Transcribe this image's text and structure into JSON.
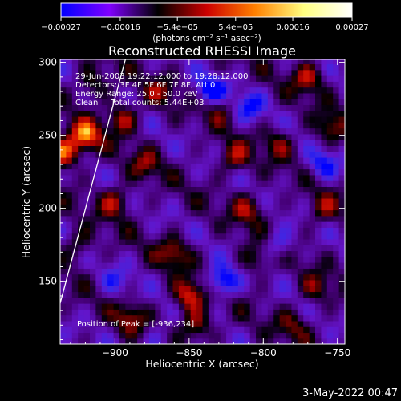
{
  "chart_data": {
    "type": "heatmap",
    "title": "Reconstructed RHESSI Image",
    "xlabel": "Heliocentric X (arcsec)",
    "ylabel": "Heliocentric Y (arcsec)",
    "xlim": [
      -937,
      -745
    ],
    "ylim": [
      107,
      302
    ],
    "x_ticks": [
      {
        "v": -900,
        "label": "−900"
      },
      {
        "v": -850,
        "label": "−850"
      },
      {
        "v": -800,
        "label": "−800"
      },
      {
        "v": -750,
        "label": "−750"
      }
    ],
    "y_ticks": [
      {
        "v": 150,
        "label": "150"
      },
      {
        "v": 200,
        "label": "200"
      },
      {
        "v": 250,
        "label": "250"
      },
      {
        "v": 300,
        "label": "300"
      }
    ],
    "colorbar": {
      "range": [
        -0.00027,
        0.00027
      ],
      "tick_values": [
        -0.00027,
        -0.00016,
        -5.4e-05,
        5.4e-05,
        0.00016,
        0.00027
      ],
      "tick_labels": [
        "−0.00027",
        "−0.00016",
        "−5.4e−05",
        "5.4e−05",
        "0.00016",
        "0.00027"
      ],
      "unit_label": "(photons cm⁻² s⁻¹ asec⁻²)",
      "colors": [
        "#0000ff",
        "#8000ff",
        "#000000",
        "#cc0000",
        "#ff8000",
        "#ffff80",
        "#ffffff"
      ]
    },
    "annotations": [
      "29-Jun-2003 19:22:12.000 to 19:28:12.000",
      "Detectors: 3F 4F 5F 6F 7F 8F, Att 0",
      "Energy Range: 25.0 - 50.0 keV",
      "Clean     Total counts: 5.44E+03"
    ],
    "peak_label": "Position of Peak = [-936,234]",
    "limb_line": [
      [
        -937,
        135
      ],
      [
        -893,
        302
      ]
    ],
    "grid_dx": 4,
    "grid_dy": 4,
    "hotspots": [
      {
        "x": -920,
        "y": 250,
        "value": 0.00026
      },
      {
        "x": -935,
        "y": 238,
        "value": 0.00027
      },
      {
        "x": -895,
        "y": 262,
        "value": 0.00018
      },
      {
        "x": -900,
        "y": 205,
        "value": 0.00017
      },
      {
        "x": -915,
        "y": 285,
        "value": 0.00014
      },
      {
        "x": -880,
        "y": 230,
        "value": 0.00012
      },
      {
        "x": -860,
        "y": 170,
        "value": 0.00016
      },
      {
        "x": -850,
        "y": 140,
        "value": 0.00022
      },
      {
        "x": -845,
        "y": 120,
        "value": 0.00018
      },
      {
        "x": -890,
        "y": 125,
        "value": 0.00014
      },
      {
        "x": -830,
        "y": 270,
        "value": 0.00012
      },
      {
        "x": -820,
        "y": 235,
        "value": 0.00016
      },
      {
        "x": -810,
        "y": 200,
        "value": 0.00015
      },
      {
        "x": -805,
        "y": 165,
        "value": 0.00013
      },
      {
        "x": -790,
        "y": 245,
        "value": 0.00012
      },
      {
        "x": -770,
        "y": 290,
        "value": 0.00017
      },
      {
        "x": -755,
        "y": 255,
        "value": 0.00015
      },
      {
        "x": -760,
        "y": 200,
        "value": 0.00013
      },
      {
        "x": -765,
        "y": 145,
        "value": 0.00012
      },
      {
        "x": -780,
        "y": 120,
        "value": 0.00011
      },
      {
        "x": -925,
        "y": 175,
        "value": 0.00012
      },
      {
        "x": -870,
        "y": 280,
        "value": 0.00011
      }
    ],
    "coldspots": [
      {
        "x": -835,
        "y": 280,
        "value": -0.00022
      },
      {
        "x": -810,
        "y": 270,
        "value": -0.00015
      },
      {
        "x": -828,
        "y": 150,
        "value": -0.00024
      },
      {
        "x": -790,
        "y": 175,
        "value": -0.00014
      },
      {
        "x": -760,
        "y": 230,
        "value": -0.00016
      },
      {
        "x": -870,
        "y": 110,
        "value": -0.0001
      },
      {
        "x": -900,
        "y": 150,
        "value": -0.0001
      }
    ]
  },
  "timestamp": "3-May-2022 00:47"
}
